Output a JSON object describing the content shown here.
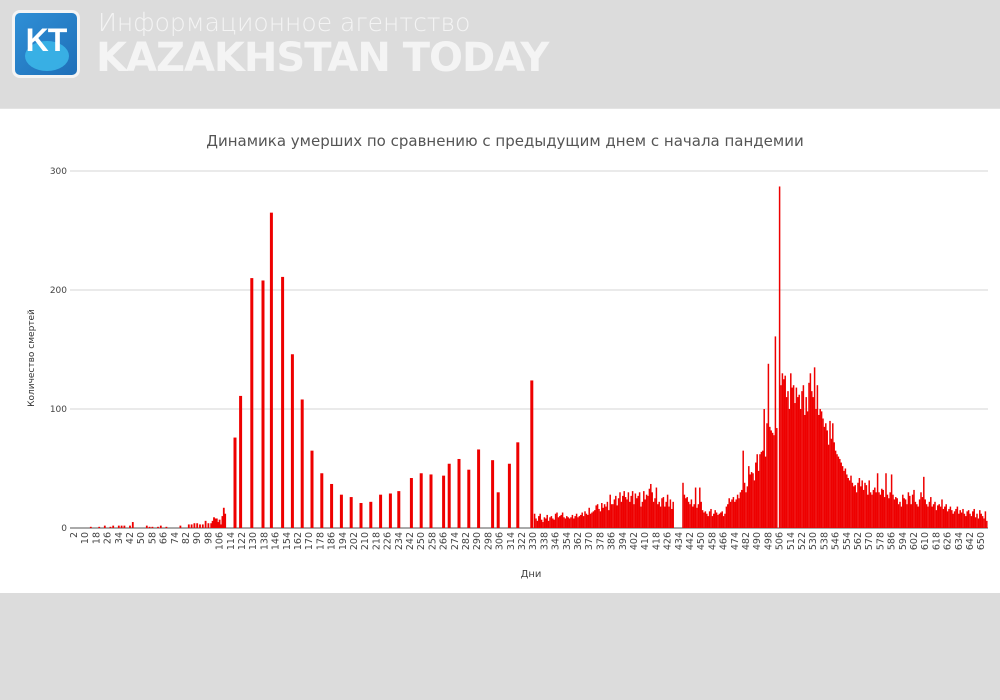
{
  "header": {
    "logo_text": "KT",
    "subtitle": "Информационное агентство",
    "brand": "KAZAKHSTAN TODAY"
  },
  "colors": {
    "bar": "#ee0000",
    "grid": "#dddddd",
    "header_bg": "#dcdcdc"
  },
  "chart_data": {
    "type": "bar",
    "title": "Динамика умерших по сравнению с предыдущим днем с начала пандемии",
    "xlabel": "Дни",
    "ylabel": "Количество смертей",
    "ylim": [
      0,
      300
    ],
    "y_ticks": [
      "0",
      "100",
      "200",
      "300"
    ],
    "x_ticks": [
      "2",
      "10",
      "18",
      "26",
      "34",
      "42",
      "50",
      "58",
      "66",
      "74",
      "82",
      "90",
      "98",
      "106",
      "114",
      "122",
      "130",
      "138",
      "146",
      "154",
      "162",
      "170",
      "178",
      "186",
      "194",
      "202",
      "210",
      "218",
      "226",
      "234",
      "242",
      "250",
      "258",
      "266",
      "274",
      "282",
      "290",
      "298",
      "306",
      "314",
      "322",
      "330",
      "338",
      "346",
      "354",
      "362",
      "370",
      "378",
      "386",
      "394",
      "402",
      "410",
      "418",
      "426",
      "434",
      "442",
      "450",
      "458",
      "466",
      "474",
      "482",
      "490",
      "498",
      "506",
      "514",
      "522",
      "530",
      "538",
      "546",
      "554",
      "562",
      "570",
      "578",
      "586",
      "594",
      "602",
      "610",
      "618",
      "626",
      "634",
      "642",
      "650"
    ],
    "grid": true,
    "legend": "none",
    "points": [
      [
        14,
        1
      ],
      [
        20,
        1
      ],
      [
        24,
        2
      ],
      [
        28,
        1
      ],
      [
        30,
        2
      ],
      [
        34,
        2
      ],
      [
        36,
        2
      ],
      [
        38,
        2
      ],
      [
        42,
        2
      ],
      [
        44,
        5
      ],
      [
        54,
        2
      ],
      [
        56,
        1
      ],
      [
        58,
        1
      ],
      [
        62,
        1
      ],
      [
        64,
        2
      ],
      [
        68,
        1
      ],
      [
        78,
        2
      ],
      [
        84,
        3
      ],
      [
        86,
        3
      ],
      [
        88,
        4
      ],
      [
        90,
        4
      ],
      [
        92,
        3
      ],
      [
        94,
        3
      ],
      [
        96,
        6
      ],
      [
        98,
        4
      ],
      [
        100,
        4
      ],
      [
        101,
        6
      ],
      [
        102,
        9
      ],
      [
        103,
        8
      ],
      [
        104,
        8
      ],
      [
        105,
        5
      ],
      [
        106,
        7
      ],
      [
        107,
        3
      ],
      [
        108,
        10
      ],
      [
        109,
        17
      ],
      [
        110,
        12
      ],
      [
        117,
        76
      ],
      [
        121,
        111
      ],
      [
        129,
        210
      ],
      [
        137,
        208
      ],
      [
        143,
        265
      ],
      [
        151,
        211
      ],
      [
        158,
        146
      ],
      [
        165,
        108
      ],
      [
        172,
        65
      ],
      [
        179,
        46
      ],
      [
        186,
        37
      ],
      [
        193,
        28
      ],
      [
        200,
        26
      ],
      [
        207,
        21
      ],
      [
        214,
        22
      ],
      [
        221,
        28
      ],
      [
        228,
        29
      ],
      [
        234,
        31
      ],
      [
        243,
        42
      ],
      [
        250,
        46
      ],
      [
        257,
        45
      ],
      [
        266,
        44
      ],
      [
        270,
        54
      ],
      [
        277,
        58
      ],
      [
        284,
        49
      ],
      [
        291,
        66
      ],
      [
        301,
        57
      ],
      [
        305,
        30
      ],
      [
        313,
        54
      ],
      [
        319,
        72
      ],
      [
        329,
        124
      ]
    ],
    "daily_from": 331,
    "daily_values": [
      12,
      8,
      6,
      10,
      12,
      7,
      5,
      9,
      8,
      11,
      6,
      9,
      10,
      8,
      7,
      12,
      13,
      9,
      10,
      11,
      13,
      9,
      8,
      10,
      9,
      8,
      9,
      11,
      8,
      10,
      12,
      9,
      10,
      11,
      13,
      10,
      14,
      12,
      11,
      17,
      12,
      13,
      14,
      15,
      19,
      20,
      16,
      14,
      21,
      17,
      20,
      18,
      22,
      15,
      28,
      20,
      20,
      24,
      27,
      19,
      25,
      30,
      22,
      27,
      31,
      26,
      24,
      30,
      22,
      27,
      31,
      20,
      29,
      25,
      27,
      30,
      18,
      22,
      31,
      24,
      28,
      27,
      33,
      37,
      30,
      22,
      25,
      34,
      20,
      22,
      18,
      25,
      26,
      18,
      22,
      28,
      18,
      24,
      16,
      22,
      0,
      0,
      0,
      0,
      0,
      0,
      38,
      28,
      25,
      26,
      22,
      20,
      24,
      18,
      20,
      34,
      17,
      20,
      34,
      22,
      15,
      13,
      14,
      12,
      10,
      14,
      16,
      10,
      12,
      15,
      13,
      11,
      12,
      13,
      14,
      10,
      12,
      18,
      20,
      25,
      22,
      24,
      26,
      22,
      24,
      28,
      25,
      30,
      32,
      65,
      38,
      30,
      35,
      52,
      45,
      47,
      46,
      40,
      55,
      62,
      48,
      62,
      64,
      65,
      100,
      60,
      88,
      138,
      85,
      82,
      80,
      78,
      161,
      84,
      0,
      287,
      120,
      130,
      125,
      128,
      110,
      115,
      100,
      130,
      118,
      120,
      105,
      118,
      110,
      112,
      100,
      115,
      120,
      95,
      110,
      98,
      122,
      130,
      115,
      110,
      135,
      100,
      120,
      95,
      100,
      98,
      92,
      85,
      88,
      82,
      70,
      90,
      75,
      88,
      72,
      65,
      62,
      60,
      58,
      55,
      52,
      48,
      50,
      45,
      42,
      40,
      44,
      38,
      35,
      36,
      30,
      38,
      42,
      35,
      40,
      32,
      38,
      36,
      28,
      40,
      30,
      28,
      32,
      34,
      30,
      46,
      30,
      28,
      33,
      32,
      26,
      46,
      28,
      25,
      30,
      45,
      28,
      24,
      26,
      25,
      20,
      22,
      18,
      28,
      25,
      24,
      20,
      30,
      27,
      20,
      28,
      32,
      22,
      20,
      18,
      24,
      30,
      26,
      43,
      24,
      20,
      18,
      22,
      26,
      18,
      20,
      22,
      15,
      19,
      20,
      18,
      24,
      16,
      18,
      20,
      14,
      16,
      18,
      15,
      12,
      14,
      16,
      18,
      12,
      15,
      13,
      16,
      12,
      10,
      14,
      15,
      12,
      10,
      14,
      16,
      9,
      12,
      8,
      15,
      12,
      10,
      8,
      14,
      6
    ]
  }
}
